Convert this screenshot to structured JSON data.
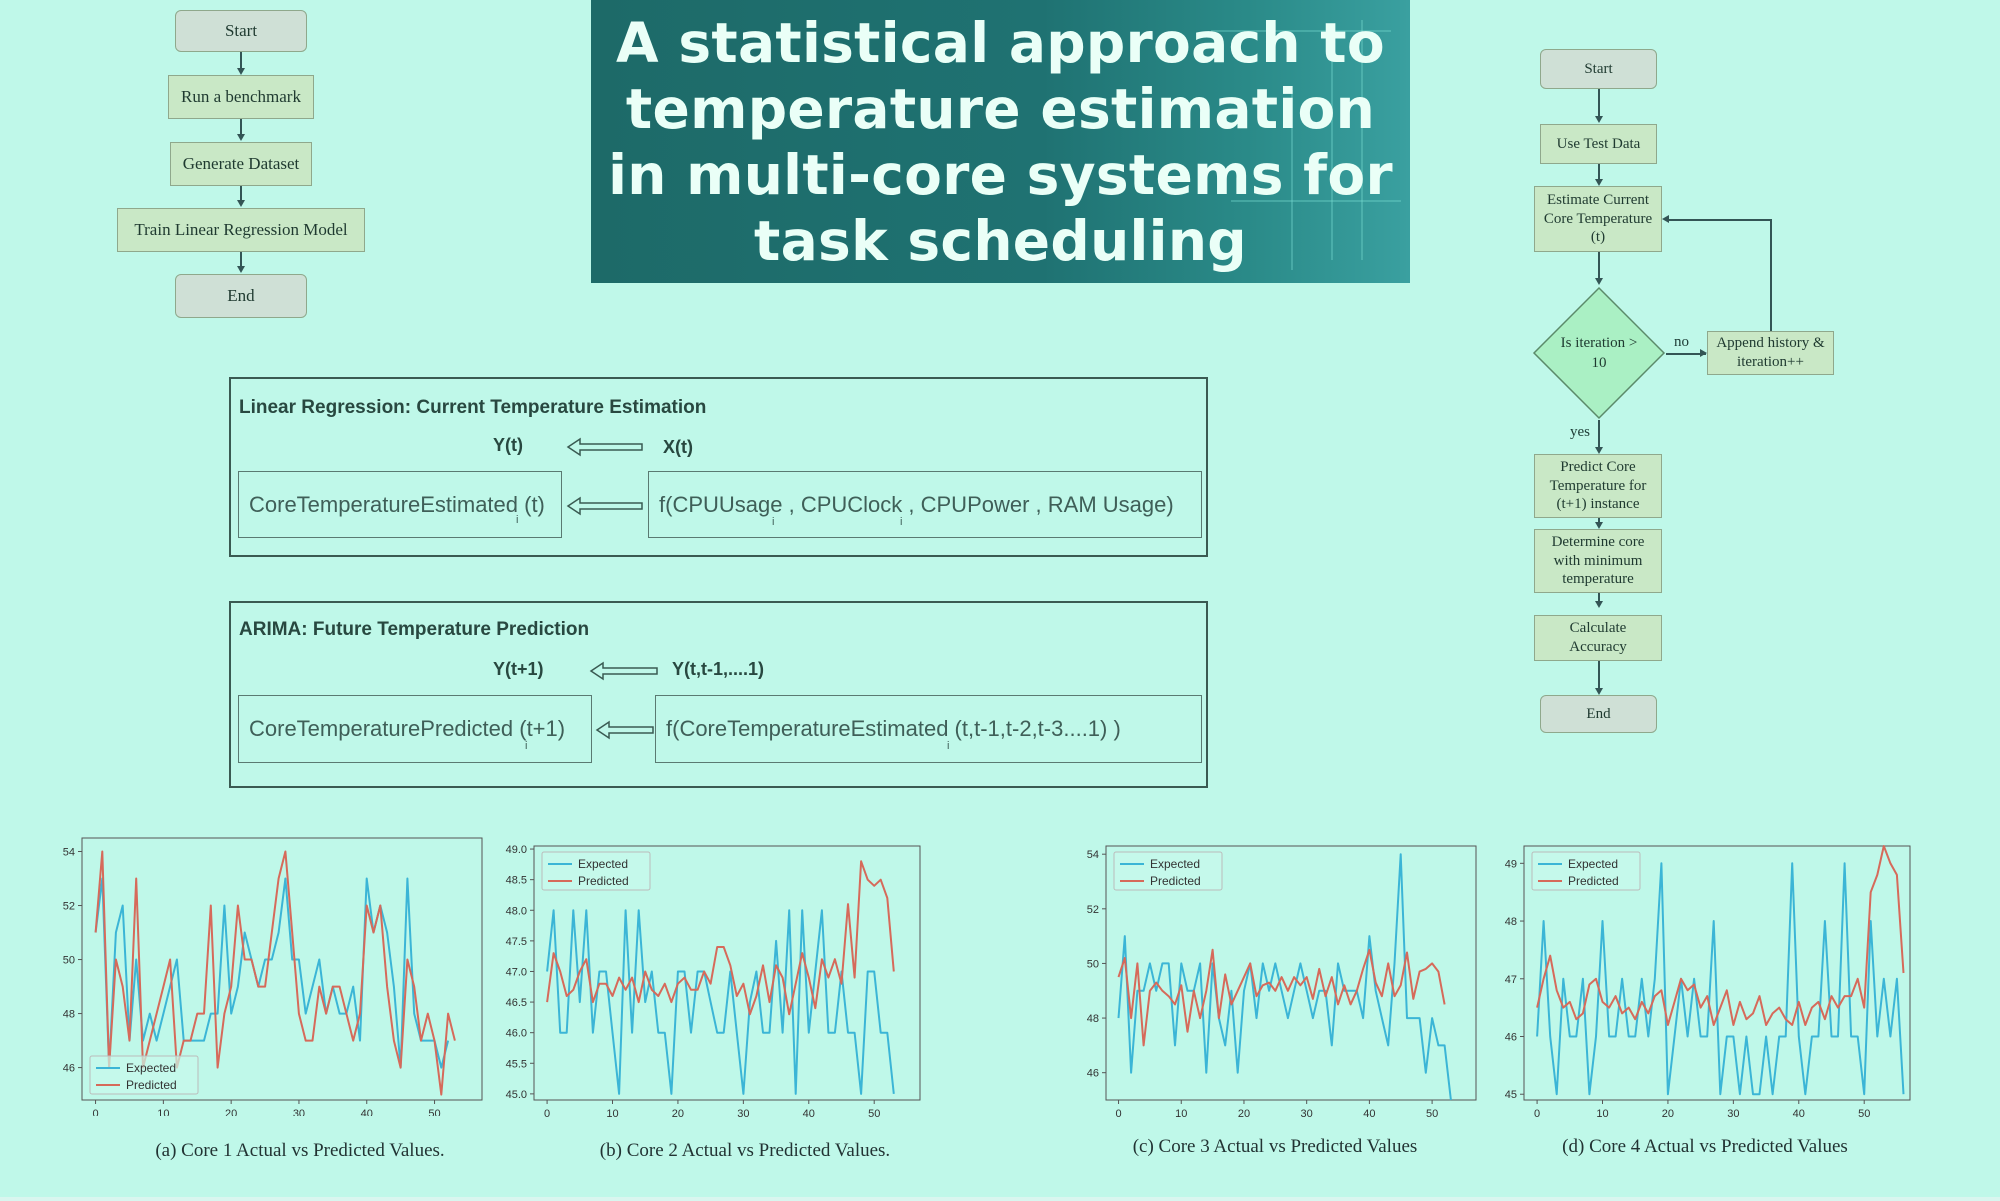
{
  "left_flow": {
    "start": "Start",
    "steps": [
      "Run a benchmark",
      "Generate Dataset",
      "Train Linear Regression Model"
    ],
    "end": "End"
  },
  "title": "A statistical approach to temperature estimation in multi-core systems for task scheduling",
  "right_flow": {
    "start": "Start",
    "use_test": "Use Test Data",
    "estimate": "Estimate Current Core Temperature (t)",
    "decision": "Is iteration > 10",
    "no_label": "no",
    "yes_label": "yes",
    "append": "Append history & iteration++",
    "predict": "Predict Core Temperature for (t+1) instance",
    "determine": "Determine core with minimum temperature",
    "calculate": "Calculate Accuracy",
    "end": "End"
  },
  "linreg": {
    "title": "Linear Regression: Current Temperature Estimation",
    "y_label": "Y(t)",
    "x_label": "X(t)",
    "left_box": "CoreTemperatureEstimated (t)",
    "right_box": "f(CPUUsage , CPUClock , CPUPower , RAM Usage)",
    "subscript": "i"
  },
  "arima": {
    "title": "ARIMA: Future Temperature Prediction",
    "y_label": "Y(t+1)",
    "x_label": "Y(t,t-1,....1)",
    "left_box": "CoreTemperaturePredicted (t+1)",
    "right_box": "f(CoreTemperatureEstimated (t,t-1,t-2,t-3....1) )",
    "subscript": "i"
  },
  "colors": {
    "expected": "#3bb5d6",
    "predicted": "#d66a5a",
    "background": "#bff8e9"
  },
  "chart_data": [
    {
      "type": "line",
      "caption": "(a) Core 1 Actual vs Predicted Values.",
      "xticks": [
        "0",
        "10",
        "20",
        "30",
        "40",
        "50"
      ],
      "yticks": [
        "46",
        "48",
        "50",
        "52",
        "54"
      ],
      "xlim": [
        -2,
        57
      ],
      "ylim": [
        44.8,
        54.5
      ],
      "legend": "bottom-left",
      "series": [
        {
          "name": "Expected",
          "values": [
            51,
            53,
            46,
            51,
            52,
            47,
            50,
            47,
            48,
            47,
            48,
            49,
            50,
            47,
            47,
            47,
            47,
            48,
            48,
            52,
            48,
            49,
            51,
            50,
            49,
            50,
            50,
            51,
            53,
            50,
            50,
            48,
            49,
            50,
            48,
            49,
            48,
            48,
            49,
            47,
            53,
            51,
            52,
            51,
            49,
            46,
            53,
            48,
            47,
            47,
            47,
            46,
            47
          ]
        },
        {
          "name": "Predicted",
          "values": [
            51,
            54,
            46,
            50,
            49,
            47,
            53,
            46,
            47,
            48,
            49,
            50,
            46,
            47,
            47,
            48,
            48,
            52,
            46,
            48,
            49,
            52,
            50,
            50,
            49,
            49,
            51,
            53,
            54,
            51,
            48,
            47,
            47,
            49,
            48,
            49,
            49,
            48,
            47,
            48,
            52,
            51,
            52,
            49,
            47,
            46,
            50,
            49,
            47,
            48,
            47,
            45,
            48,
            47
          ]
        }
      ]
    },
    {
      "type": "line",
      "caption": "(b) Core 2 Actual vs Predicted Values.",
      "xticks": [
        "0",
        "10",
        "20",
        "30",
        "40",
        "50"
      ],
      "yticks": [
        "45.0",
        "45.5",
        "46.0",
        "46.5",
        "47.0",
        "47.5",
        "48.0",
        "48.5",
        "49.0"
      ],
      "xlim": [
        -2,
        57
      ],
      "ylim": [
        44.9,
        49.05
      ],
      "legend": "top-left",
      "series": [
        {
          "name": "Expected",
          "values": [
            47,
            48,
            46,
            46,
            48,
            46.5,
            48,
            46,
            47,
            47,
            46,
            45,
            48,
            46,
            48,
            46.5,
            47,
            46,
            46,
            45,
            47,
            47,
            46,
            47,
            47,
            46.5,
            46,
            46,
            47,
            46,
            45,
            46.5,
            47,
            46,
            46,
            47.5,
            46,
            48,
            45,
            48,
            46,
            47,
            48,
            46,
            46,
            47,
            46,
            46,
            45,
            47,
            47,
            46,
            46,
            45
          ]
        },
        {
          "name": "Predicted",
          "values": [
            46.5,
            47.3,
            47,
            46.6,
            46.7,
            47,
            47.2,
            46.5,
            46.8,
            46.8,
            46.6,
            46.9,
            46.7,
            46.9,
            46.5,
            47,
            46.7,
            46.6,
            46.8,
            46.5,
            46.8,
            46.9,
            46.7,
            46.7,
            47,
            46.8,
            47.4,
            47.4,
            47.1,
            46.6,
            46.8,
            46.3,
            46.6,
            47.1,
            46.5,
            47.1,
            46.9,
            46.3,
            46.8,
            47.3,
            46.9,
            46.4,
            47.2,
            46.9,
            47.2,
            46.8,
            48.1,
            46.9,
            48.8,
            48.5,
            48.4,
            48.5,
            48.2,
            47
          ]
        }
      ]
    },
    {
      "type": "line",
      "caption": "(c) Core 3 Actual vs Predicted Values",
      "xticks": [
        "0",
        "10",
        "20",
        "30",
        "40",
        "50"
      ],
      "yticks": [
        "46",
        "48",
        "50",
        "52",
        "54"
      ],
      "xlim": [
        -2,
        57
      ],
      "ylim": [
        45,
        54.3
      ],
      "legend": "top-left",
      "series": [
        {
          "name": "Expected",
          "values": [
            48,
            51,
            46,
            49,
            49,
            50,
            49,
            50,
            50,
            47,
            50,
            49,
            49,
            50,
            46,
            50,
            48,
            47,
            49,
            46,
            49,
            50,
            48,
            50,
            49,
            50,
            49,
            48,
            49,
            50,
            49,
            48,
            49,
            49,
            47,
            50,
            49,
            49,
            49,
            48,
            51,
            49,
            48,
            47,
            50,
            54,
            48,
            48,
            48,
            46,
            48,
            47,
            47,
            45
          ]
        },
        {
          "name": "Predicted",
          "values": [
            49.5,
            50.2,
            48,
            50,
            47,
            49,
            49.3,
            49,
            48.8,
            48.5,
            49.2,
            47.5,
            49,
            48,
            49,
            50.5,
            48,
            49.6,
            48.5,
            49,
            49.5,
            50,
            48.8,
            49.2,
            49.3,
            49,
            49.5,
            49,
            49.5,
            49.2,
            49.5,
            48.7,
            49.8,
            48.8,
            49.5,
            48.5,
            49.2,
            48.5,
            49,
            49.8,
            50.5,
            49.3,
            48.8,
            50,
            48.8,
            49.2,
            50.4,
            48.7,
            49.7,
            49.8,
            50,
            49.7,
            48.5
          ]
        }
      ]
    },
    {
      "type": "line",
      "caption": "(d) Core 4 Actual vs Predicted Values",
      "xticks": [
        "0",
        "10",
        "20",
        "30",
        "40",
        "50"
      ],
      "yticks": [
        "45",
        "46",
        "47",
        "48",
        "49"
      ],
      "xlim": [
        -2,
        57
      ],
      "ylim": [
        44.9,
        49.3
      ],
      "legend": "top-left",
      "series": [
        {
          "name": "Expected",
          "values": [
            46,
            48,
            46,
            45,
            47,
            46,
            46,
            47,
            45,
            46,
            48,
            46,
            46,
            47,
            46,
            46,
            47,
            46,
            47,
            49,
            45,
            46,
            47,
            46,
            47,
            46,
            46,
            48,
            45,
            46,
            46,
            45,
            46,
            45,
            45,
            46,
            45,
            46,
            46,
            49,
            46,
            45,
            46,
            46,
            48,
            46,
            46,
            49,
            46,
            46,
            45,
            48,
            46,
            47,
            46,
            47,
            45
          ]
        },
        {
          "name": "Predicted",
          "values": [
            46.5,
            47,
            47.4,
            46.8,
            46.5,
            46.6,
            46.3,
            46.4,
            46.9,
            47,
            46.6,
            46.5,
            46.7,
            46.4,
            46.5,
            46.3,
            46.6,
            46.4,
            46.7,
            46.8,
            46.2,
            46.6,
            47,
            46.8,
            46.9,
            46.5,
            46.7,
            46.2,
            46.5,
            46.8,
            46.2,
            46.6,
            46.3,
            46.4,
            46.7,
            46.2,
            46.4,
            46.5,
            46.3,
            46.2,
            46.6,
            46.2,
            46.5,
            46.6,
            46.3,
            46.7,
            46.5,
            46.7,
            46.7,
            47,
            46.5,
            48.5,
            48.8,
            49.3,
            49,
            48.8,
            47.1
          ]
        }
      ]
    }
  ]
}
